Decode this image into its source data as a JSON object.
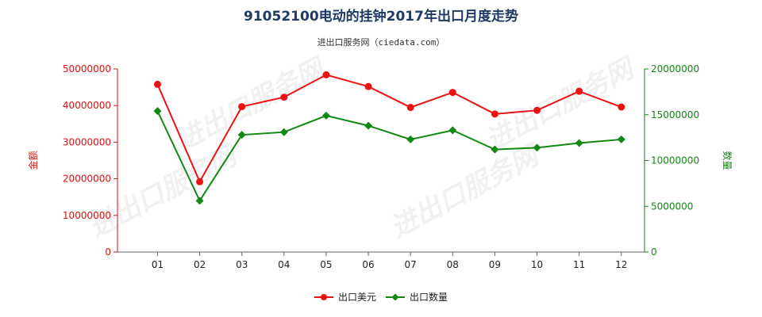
{
  "chart_data": {
    "type": "line",
    "title": "91052100电动的挂钟2017年出口月度走势",
    "subtitle": "进出口服务网（ciedata.com）",
    "categories": [
      "01",
      "02",
      "03",
      "04",
      "05",
      "06",
      "07",
      "08",
      "09",
      "10",
      "11",
      "12"
    ],
    "series": [
      {
        "name": "出口美元",
        "axis": "left",
        "color": "#ee1111",
        "values": [
          45800000,
          19200000,
          39700000,
          42300000,
          48400000,
          45200000,
          39500000,
          43600000,
          37700000,
          38700000,
          43900000,
          39600000
        ]
      },
      {
        "name": "出口数量",
        "axis": "right",
        "color": "#118811",
        "values": [
          15400000,
          5600000,
          12800000,
          13100000,
          14900000,
          13800000,
          12300000,
          13300000,
          11200000,
          11400000,
          11900000,
          12300000
        ]
      }
    ],
    "y_left": {
      "label": "金额",
      "range": [
        0,
        50000000
      ],
      "ticks": [
        0,
        10000000,
        20000000,
        30000000,
        40000000,
        50000000
      ],
      "tick_labels": [
        "0",
        "10000000",
        "20000000",
        "30000000",
        "40000000",
        "50000000"
      ],
      "color": "#dd1111"
    },
    "y_right": {
      "label": "数量",
      "range": [
        0,
        20000000
      ],
      "ticks": [
        0,
        5000000,
        10000000,
        15000000,
        20000000
      ],
      "tick_labels": [
        "0",
        "5000000",
        "10000000",
        "15000000",
        "20000000"
      ],
      "color": "#118811"
    },
    "grid": false,
    "legend_position": "bottom-center",
    "watermark": "进出口服务网"
  }
}
